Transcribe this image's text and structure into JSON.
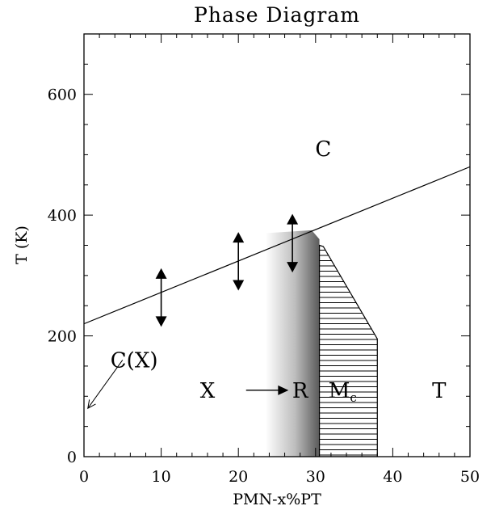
{
  "chart_data": {
    "type": "line",
    "title": "Phase Diagram",
    "xlabel": "PMN-x%PT",
    "ylabel": "T (K)",
    "xlim": [
      0,
      50
    ],
    "ylim": [
      0,
      700
    ],
    "x_ticks": [
      0,
      10,
      20,
      30,
      40,
      50
    ],
    "x_tick_labels": [
      "0",
      "10",
      "20",
      "30",
      "40",
      "50"
    ],
    "y_ticks": [
      0,
      200,
      400,
      600
    ],
    "y_tick_labels": [
      "0",
      "200",
      "400",
      "600"
    ],
    "grid": false,
    "series": [
      {
        "x": [
          0,
          50
        ],
        "y": [
          220,
          480
        ]
      }
    ],
    "arrows": [
      {
        "x": 10,
        "y_low": 215,
        "y_high": 312
      },
      {
        "x": 20,
        "y_low": 275,
        "y_high": 372
      },
      {
        "x": 27,
        "y_low": 305,
        "y_high": 402
      }
    ],
    "transition_arrow": {
      "y": 110,
      "x_start": 21,
      "x_end": 26.5
    },
    "rhombohedral_region": {
      "x_start": 23.5,
      "x_end": 30.5,
      "peak_x": 29.5,
      "peak_y": 375
    },
    "mc_region": {
      "polygon": [
        [
          30.5,
          0
        ],
        [
          30.5,
          350
        ],
        [
          31,
          348
        ],
        [
          38,
          195
        ],
        [
          38,
          0
        ]
      ],
      "fill": "hatched"
    },
    "cx_pointer": {
      "label_x": 5,
      "label_y": 160,
      "tip_x": 0.5,
      "tip_y": 80
    },
    "labels": [
      {
        "text": "C",
        "x": 31,
        "y": 510
      },
      {
        "text": "X",
        "x": 16,
        "y": 110
      },
      {
        "text": "R",
        "x": 28,
        "y": 110
      },
      {
        "text": "M",
        "sub": "c",
        "x": 33.5,
        "y": 110
      },
      {
        "text": "T",
        "x": 46,
        "y": 110
      },
      {
        "text": "C(X)",
        "x": 6.5,
        "y": 160
      }
    ]
  }
}
